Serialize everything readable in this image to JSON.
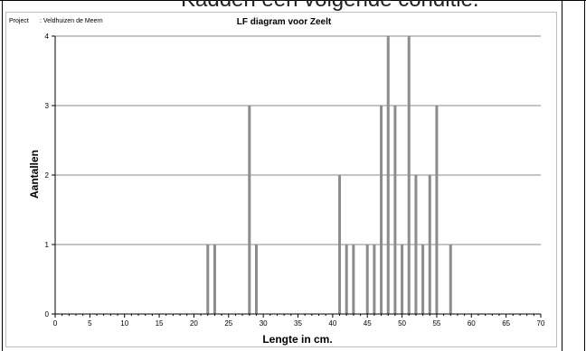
{
  "page_heading_fragment": "Kadden een volgende conditie.",
  "project": {
    "label": "Project",
    "value": ": Veldhuizen de Meern"
  },
  "chart_data": {
    "type": "bar",
    "title": "LF diagram voor Zeelt",
    "xlabel": "Lengte in cm.",
    "ylabel": "Aantallen",
    "xlim": [
      0,
      70
    ],
    "ylim": [
      0,
      4
    ],
    "x_ticks": [
      0,
      5,
      10,
      15,
      20,
      25,
      30,
      35,
      40,
      45,
      50,
      55,
      60,
      65,
      70
    ],
    "y_ticks": [
      0,
      1,
      2,
      3,
      4
    ],
    "grid": true,
    "bar_color": "#8c8c8c",
    "x": [
      22,
      23,
      28,
      29,
      41,
      42,
      43,
      45,
      46,
      47,
      48,
      49,
      50,
      51,
      52,
      53,
      54,
      55,
      57
    ],
    "values": [
      1,
      1,
      3,
      1,
      2,
      1,
      1,
      1,
      1,
      3,
      4,
      3,
      1,
      4,
      2,
      1,
      2,
      3,
      1
    ]
  }
}
